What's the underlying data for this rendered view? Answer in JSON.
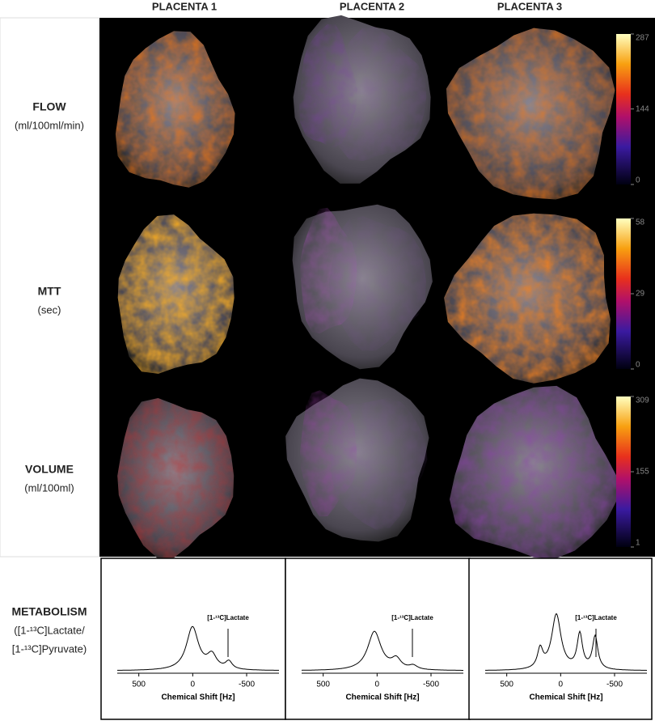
{
  "columns": [
    "PLACENTA 1",
    "PLACENTA 2",
    "PLACENTA 3"
  ],
  "rows": [
    {
      "label": "FLOW",
      "unit": "(ml/100ml/min)",
      "colorbar": {
        "lim": [
          0,
          287
        ],
        "ticks": [
          0,
          144,
          287
        ]
      }
    },
    {
      "label": "MTT",
      "unit": "(sec)",
      "colorbar": {
        "lim": [
          0,
          58
        ],
        "ticks": [
          0,
          29,
          58
        ]
      }
    },
    {
      "label": "VOLUME",
      "unit": "(ml/100ml)",
      "colorbar": {
        "lim": [
          1,
          309
        ],
        "ticks": [
          1,
          155,
          309
        ]
      }
    }
  ],
  "metabolism": {
    "label": "METABOLISM",
    "lines": [
      "([1-¹³C]Lactate/",
      "[1-¹³C]Pyruvate)"
    ]
  },
  "spectra": {
    "xlabel": "Chemical Shift [Hz]",
    "xlim": [
      700,
      -800
    ],
    "xticks": [
      500,
      0,
      -500
    ],
    "annotation": "[1-¹³C]Lactate"
  }
}
